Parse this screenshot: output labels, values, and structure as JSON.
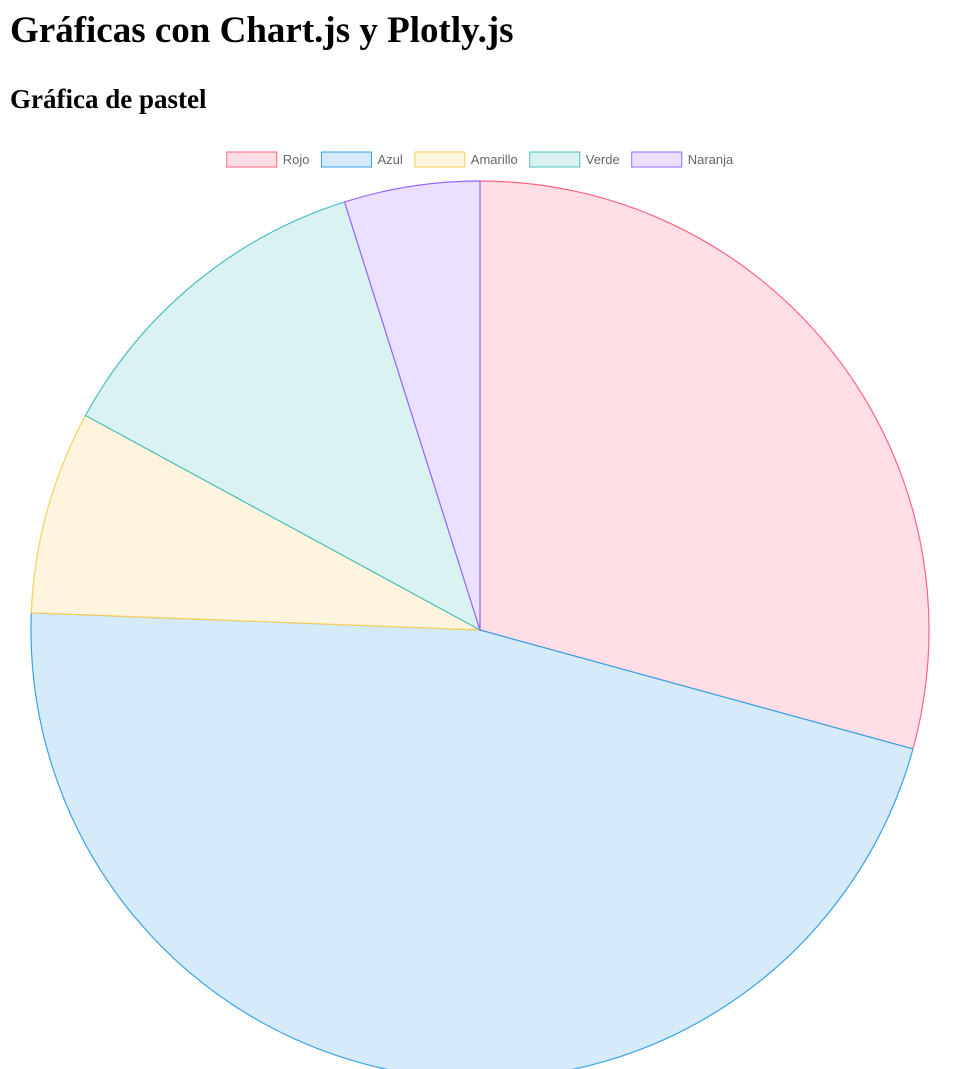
{
  "page": {
    "title": "Gráficas con Chart.js y Plotly.js",
    "section_title": "Gráfica de pastel"
  },
  "chart_data": {
    "type": "pie",
    "title": "",
    "legend_position": "top",
    "labels": [
      "Rojo",
      "Azul",
      "Amarillo",
      "Verde",
      "Naranja"
    ],
    "values": [
      12,
      19,
      3,
      5,
      2
    ],
    "background_colors": [
      "#FFDFE5",
      "#D6EBF9",
      "#FFF4DD",
      "#DAF2F2",
      "#EBE0FF"
    ],
    "border_colors": [
      "#FF6384",
      "#36A2EB",
      "#FFCE56",
      "#4BC0C0",
      "#9966FF"
    ]
  }
}
